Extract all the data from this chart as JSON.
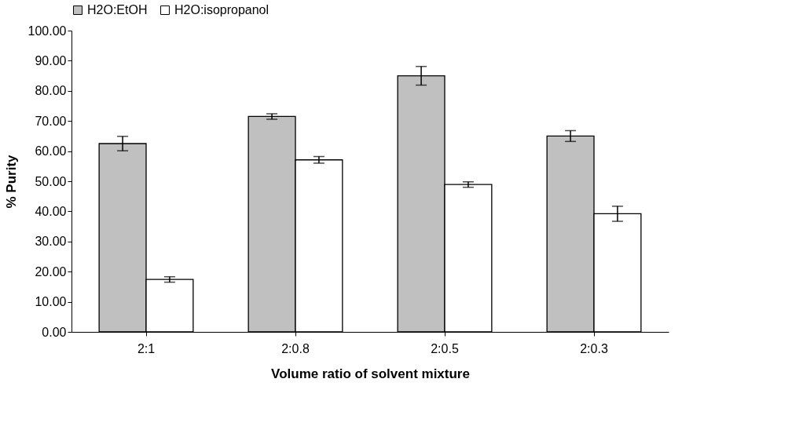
{
  "chart_data": {
    "type": "bar",
    "xlabel": "Volume ratio of solvent mixture",
    "ylabel": "% Purity",
    "categories": [
      "2:1",
      "2:0.8",
      "2:0.5",
      "2:0.3"
    ],
    "series": [
      {
        "name": "H2O:EtOH",
        "color": "#c0c0c0",
        "values": [
          62.5,
          71.5,
          85.0,
          65.0
        ],
        "errors": [
          2.4,
          0.9,
          3.1,
          1.8
        ]
      },
      {
        "name": "H2O:isopropanol",
        "color": "#ffffff",
        "values": [
          17.4,
          57.1,
          48.9,
          39.2
        ],
        "errors": [
          0.9,
          1.1,
          0.9,
          2.5
        ]
      }
    ],
    "ylim": [
      0,
      100
    ],
    "yticks": [
      {
        "value": 0,
        "label": "0.00"
      },
      {
        "value": 10,
        "label": "10.00"
      },
      {
        "value": 20,
        "label": "20.00"
      },
      {
        "value": 30,
        "label": "30.00"
      },
      {
        "value": 40,
        "label": "40.00"
      },
      {
        "value": 50,
        "label": "50.00"
      },
      {
        "value": 60,
        "label": "60.00"
      },
      {
        "value": 70,
        "label": "70.00"
      },
      {
        "value": 80,
        "label": "80.00"
      },
      {
        "value": 90,
        "label": "90.00"
      },
      {
        "value": 100,
        "label": "100.00"
      }
    ],
    "grid": false,
    "legend": "top"
  }
}
